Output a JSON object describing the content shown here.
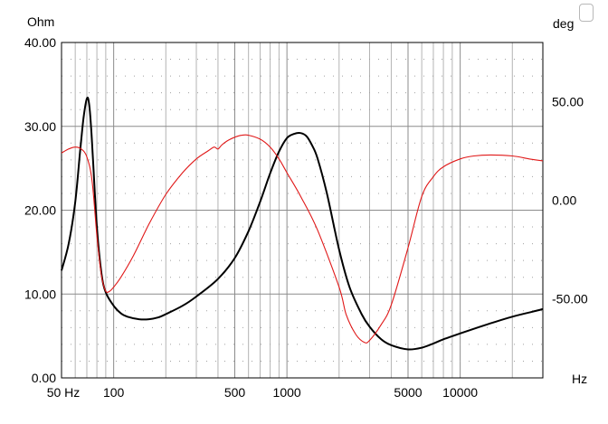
{
  "chart_data": {
    "type": "line",
    "x_scale": "log",
    "xlabel": "Hz",
    "ylabel_left": "Ohm",
    "ylabel_right": "deg",
    "xlim": [
      50,
      30000
    ],
    "ylim_left": [
      0,
      40
    ],
    "ylim_right": [
      -90,
      80
    ],
    "x_tick_labels": [
      {
        "value": 50,
        "label": "50 Hz"
      },
      {
        "value": 100,
        "label": "100"
      },
      {
        "value": 500,
        "label": "500"
      },
      {
        "value": 1000,
        "label": "1000"
      },
      {
        "value": 5000,
        "label": "5000"
      },
      {
        "value": 10000,
        "label": "10000"
      }
    ],
    "x_end_label": "Hz",
    "y_left_ticks": [
      {
        "value": 0,
        "label": "0.00"
      },
      {
        "value": 10,
        "label": "10.00"
      },
      {
        "value": 20,
        "label": "20.00"
      },
      {
        "value": 30,
        "label": "30.00"
      },
      {
        "value": 40,
        "label": "40.00"
      }
    ],
    "y_right_ticks": [
      {
        "value": 50,
        "label": "50.00"
      },
      {
        "value": 0,
        "label": "0.00"
      },
      {
        "value": -50,
        "label": "-50.00"
      }
    ],
    "grid": true,
    "series": [
      {
        "axis": "left",
        "color": "#000000",
        "x": [
          50,
          55,
          60,
          64,
          67,
          70,
          72,
          74,
          76,
          80,
          85,
          90,
          100,
          110,
          120,
          140,
          160,
          180,
          200,
          250,
          300,
          400,
          500,
          600,
          700,
          800,
          900,
          1000,
          1100,
          1200,
          1300,
          1400,
          1500,
          1700,
          2000,
          2300,
          2700,
          3000,
          3500,
          4000,
          5000,
          6000,
          7000,
          8000,
          10000,
          13000,
          16000,
          20000,
          25000,
          30000
        ],
        "values": [
          12.8,
          16,
          21,
          27,
          31,
          33.3,
          32.8,
          30,
          26,
          18,
          12.5,
          10.2,
          8.6,
          7.7,
          7.3,
          7.0,
          7.0,
          7.2,
          7.6,
          8.6,
          9.7,
          11.8,
          14.3,
          17.5,
          21,
          24.4,
          27,
          28.6,
          29.1,
          29.2,
          28.8,
          27.7,
          26.2,
          22,
          15.3,
          10.8,
          7.6,
          6.1,
          4.6,
          3.9,
          3.4,
          3.6,
          4.1,
          4.6,
          5.3,
          6.1,
          6.7,
          7.3,
          7.8,
          8.2
        ]
      },
      {
        "axis": "right",
        "color": "#e01818",
        "x": [
          50,
          55,
          60,
          65,
          70,
          75,
          80,
          85,
          90,
          95,
          100,
          110,
          130,
          160,
          200,
          250,
          300,
          350,
          380,
          400,
          420,
          450,
          500,
          550,
          600,
          700,
          800,
          900,
          1000,
          1200,
          1500,
          2000,
          2200,
          2500,
          2800,
          3000,
          3500,
          4000,
          5000,
          6000,
          7000,
          8000,
          10000,
          12000,
          15000,
          20000,
          25000,
          30000
        ],
        "values": [
          24,
          26,
          27,
          26,
          22,
          10,
          -18,
          -38,
          -46,
          -46,
          -44,
          -39,
          -28,
          -12,
          3,
          14,
          21,
          25,
          27,
          26,
          28,
          30,
          32,
          33,
          33,
          31,
          27,
          21,
          14,
          2,
          -15,
          -44,
          -58,
          -68,
          -72,
          -71,
          -63,
          -53,
          -24,
          2,
          12,
          17,
          21,
          22.5,
          23,
          22.5,
          21,
          20
        ]
      }
    ]
  }
}
